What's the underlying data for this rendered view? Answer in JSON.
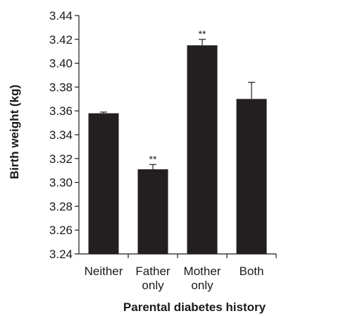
{
  "chart_data": {
    "type": "bar",
    "categories": [
      [
        "Neither"
      ],
      [
        "Father",
        "only"
      ],
      [
        "Mother",
        "only"
      ],
      [
        "Both"
      ]
    ],
    "values": [
      3.358,
      3.311,
      3.415,
      3.37
    ],
    "error_upper": [
      3.359,
      3.315,
      3.42,
      3.384
    ],
    "annotations": [
      "",
      "**",
      "**",
      ""
    ],
    "xlabel": "Parental diabetes history",
    "ylabel": "Birth weight (kg)",
    "ylim": [
      3.24,
      3.44
    ],
    "yticks": [
      "3.24",
      "3.26",
      "3.28",
      "3.30",
      "3.32",
      "3.34",
      "3.36",
      "3.38",
      "3.40",
      "3.42",
      "3.44"
    ],
    "bar_color": "#231f20",
    "grid": false
  }
}
